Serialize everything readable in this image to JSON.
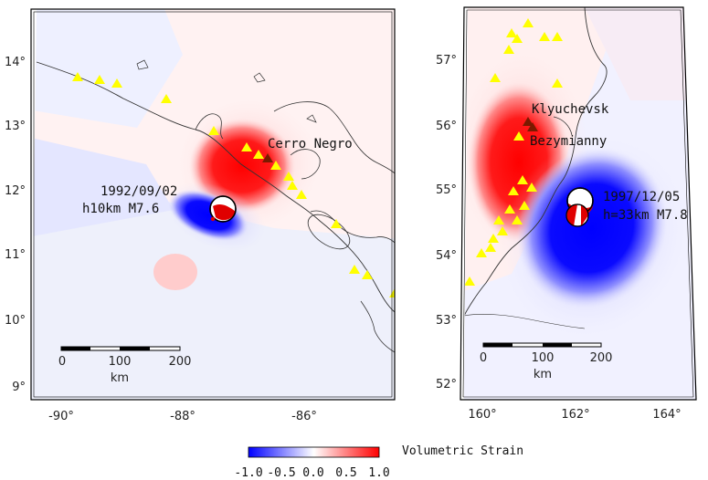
{
  "left_panel": {
    "lon_ticks": [
      "-90°",
      "-88°",
      "-86°"
    ],
    "lat_ticks": [
      "9°",
      "10°",
      "11°",
      "12°",
      "13°",
      "14°"
    ],
    "event_date": "1992/09/02",
    "event_info": "h10km M7.6",
    "volcano_label": "Cerro Negro",
    "scale_ticks": [
      "0",
      "100",
      "200"
    ],
    "scale_unit": "km"
  },
  "right_panel": {
    "lon_ticks": [
      "160°",
      "162°",
      "164°"
    ],
    "lat_ticks": [
      "52°",
      "53°",
      "54°",
      "55°",
      "56°",
      "57°"
    ],
    "event_date": "1997/12/05",
    "event_info": "h=33km M7.8",
    "volcano_label_1": "Klyuchevsk",
    "volcano_label_2": "Bezymianny",
    "scale_ticks": [
      "0",
      "100",
      "200"
    ],
    "scale_unit": "km"
  },
  "colorbar": {
    "title": "Volumetric Strain",
    "ticks": [
      "-1.0",
      "-0.5",
      "0.0",
      "0.5",
      "1.0"
    ],
    "colors": {
      "negative": "#0000ff",
      "zero": "#ffffff",
      "positive": "#ff0000"
    }
  },
  "colors": {
    "volcano": "#ffff00",
    "target_volcano": "#7a1a00",
    "coast": "#333333"
  }
}
